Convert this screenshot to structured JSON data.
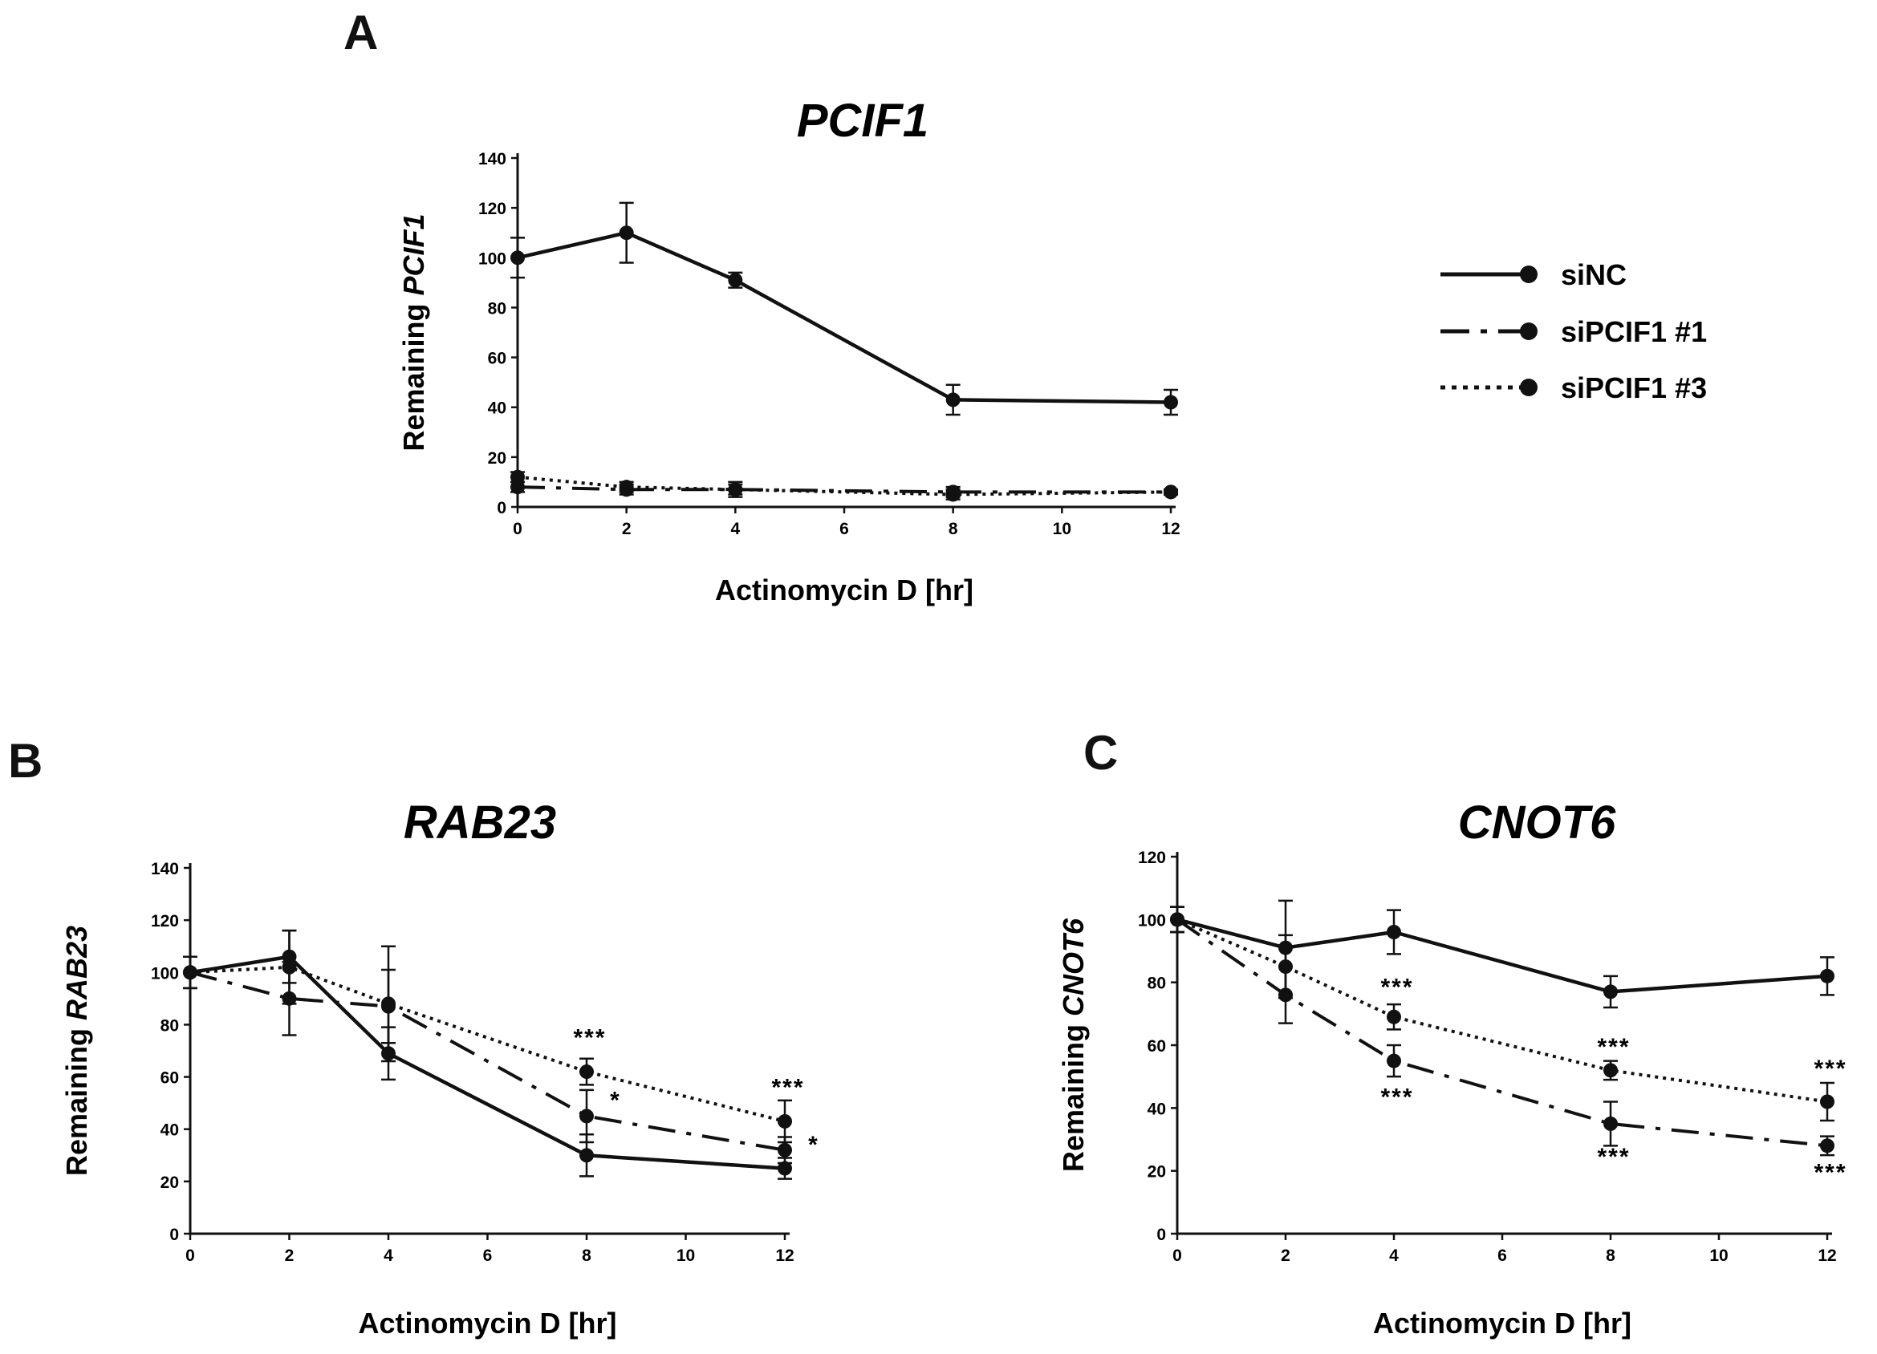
{
  "panels": {
    "A": {
      "letter": "A"
    },
    "B": {
      "letter": "B"
    },
    "C": {
      "letter": "C"
    }
  },
  "legend": {
    "items": [
      {
        "label": "siNC",
        "style": "solid"
      },
      {
        "label": "siPCIF1 #1",
        "style": "dashdot"
      },
      {
        "label": "siPCIF1 #3",
        "style": "dotted"
      }
    ]
  },
  "chart_data": [
    {
      "type": "line",
      "panel": "A",
      "title": "PCIF1",
      "xlabel": "Actinomycin D [hr]",
      "ylabel_prefix": "Remaining ",
      "ylabel_gene": "PCIF1",
      "xlim": [
        0,
        12
      ],
      "ylim": [
        0,
        140
      ],
      "xticks": [
        0,
        2,
        4,
        6,
        8,
        10,
        12
      ],
      "yticks": [
        0,
        20,
        40,
        60,
        80,
        100,
        120,
        140
      ],
      "series": [
        {
          "name": "siNC",
          "style": "solid",
          "x": [
            0,
            2,
            4,
            8,
            12
          ],
          "y": [
            100,
            110,
            91,
            43,
            42
          ],
          "err": [
            8,
            12,
            3,
            6,
            5
          ]
        },
        {
          "name": "siPCIF1 #1",
          "style": "dashdot",
          "x": [
            0,
            2,
            4,
            8,
            12
          ],
          "y": [
            8,
            7,
            7,
            6,
            6
          ],
          "err": [
            2,
            2,
            3,
            2,
            1
          ]
        },
        {
          "name": "siPCIF1 #3",
          "style": "dotted",
          "x": [
            0,
            2,
            4,
            8,
            12
          ],
          "y": [
            12,
            8,
            7,
            5,
            6
          ],
          "err": [
            2,
            2,
            2,
            2,
            1
          ]
        }
      ],
      "annotations": []
    },
    {
      "type": "line",
      "panel": "B",
      "title": "RAB23",
      "xlabel": "Actinomycin D [hr]",
      "ylabel_prefix": "Remaining ",
      "ylabel_gene": "RAB23",
      "xlim": [
        0,
        12
      ],
      "ylim": [
        0,
        140
      ],
      "xticks": [
        0,
        2,
        4,
        6,
        8,
        10,
        12
      ],
      "yticks": [
        0,
        20,
        40,
        60,
        80,
        100,
        120,
        140
      ],
      "series": [
        {
          "name": "siNC",
          "style": "solid",
          "x": [
            0,
            2,
            4,
            8,
            12
          ],
          "y": [
            100,
            106,
            69,
            30,
            25
          ],
          "err": [
            6,
            10,
            10,
            8,
            4
          ]
        },
        {
          "name": "siPCIF1 #1",
          "style": "dashdot",
          "x": [
            0,
            2,
            4,
            8,
            12
          ],
          "y": [
            100,
            90,
            87,
            45,
            32
          ],
          "err": [
            6,
            14,
            14,
            10,
            5
          ]
        },
        {
          "name": "siPCIF1 #3",
          "style": "dotted",
          "x": [
            0,
            2,
            4,
            8,
            12
          ],
          "y": [
            100,
            102,
            88,
            62,
            43
          ],
          "err": [
            6,
            14,
            22,
            5,
            8
          ]
        }
      ],
      "annotations": [
        {
          "x": 8,
          "y": 72,
          "text": "***"
        },
        {
          "x": 8,
          "y": 48,
          "text": "*"
        },
        {
          "x": 12,
          "y": 53,
          "text": "***"
        },
        {
          "x": 12,
          "y": 31,
          "text": "*"
        }
      ]
    },
    {
      "type": "line",
      "panel": "C",
      "title": "CNOT6",
      "xlabel": "Actinomycin D [hr]",
      "ylabel_prefix": "Remaining ",
      "ylabel_gene": "CNOT6",
      "xlim": [
        0,
        12
      ],
      "ylim": [
        0,
        120
      ],
      "xticks": [
        0,
        2,
        4,
        6,
        8,
        10,
        12
      ],
      "yticks": [
        0,
        20,
        40,
        60,
        80,
        100,
        120
      ],
      "series": [
        {
          "name": "siNC",
          "style": "solid",
          "x": [
            0,
            2,
            4,
            8,
            12
          ],
          "y": [
            100,
            91,
            96,
            77,
            82
          ],
          "err": [
            4,
            15,
            7,
            5,
            6
          ]
        },
        {
          "name": "siPCIF1 #1",
          "style": "dashdot",
          "x": [
            0,
            2,
            4,
            8,
            12
          ],
          "y": [
            100,
            76,
            55,
            35,
            28
          ],
          "err": [
            4,
            9,
            5,
            7,
            3
          ]
        },
        {
          "name": "siPCIF1 #3",
          "style": "dotted",
          "x": [
            0,
            2,
            4,
            8,
            12
          ],
          "y": [
            100,
            85,
            69,
            52,
            42
          ],
          "err": [
            4,
            10,
            4,
            3,
            6
          ]
        }
      ],
      "annotations": [
        {
          "x": 4,
          "y": 76,
          "text": "***"
        },
        {
          "x": 4,
          "y": 41,
          "text": "***"
        },
        {
          "x": 8,
          "y": 57,
          "text": "***"
        },
        {
          "x": 8,
          "y": 22,
          "text": "***"
        },
        {
          "x": 12,
          "y": 50,
          "text": "***"
        },
        {
          "x": 12,
          "y": 17,
          "text": "***"
        }
      ]
    }
  ]
}
